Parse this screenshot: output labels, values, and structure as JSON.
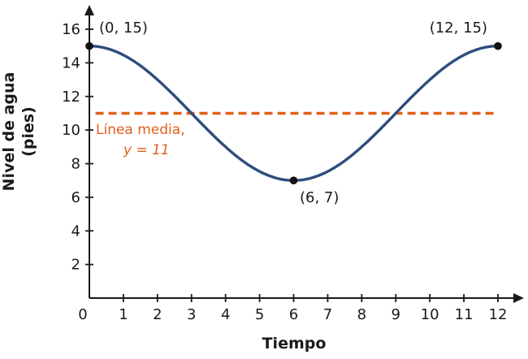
{
  "figure": {
    "xlabel": "Tiempo",
    "ylabel_line1": "Nivel de agua",
    "ylabel_line2": "(pies)"
  },
  "chart_data": {
    "type": "line",
    "title": "",
    "xlabel": "Tiempo",
    "ylabel": "Nivel de agua (pies)",
    "xlim": [
      0,
      12
    ],
    "ylim": [
      0,
      16
    ],
    "grid": false,
    "origin_label": "0",
    "x_ticks": [
      1,
      2,
      3,
      4,
      5,
      6,
      7,
      8,
      9,
      10,
      11,
      12
    ],
    "y_ticks": [
      2,
      4,
      6,
      8,
      10,
      12,
      14,
      16
    ],
    "series": [
      {
        "name": "nivel-de-agua",
        "model": "y = 11 + 4*cos(pi*x/6)",
        "color": "#2e4d7b",
        "x": [
          0,
          1,
          2,
          3,
          4,
          5,
          6,
          7,
          8,
          9,
          10,
          11,
          12
        ],
        "values": [
          15,
          14.46,
          13,
          11,
          9,
          7.54,
          7,
          7.54,
          9,
          11,
          13,
          14.46,
          15
        ]
      }
    ],
    "curve_params": {
      "midline": 11,
      "amplitude": 4,
      "period": 12
    },
    "curve_color": "#2e4d7b",
    "point_color": "#111111",
    "axis_color": "#1a1a1a",
    "midline": {
      "y": 11,
      "color": "#e2601b",
      "style": "dashed",
      "label_line1": "Línea media,",
      "label_line2": "y = 11"
    },
    "annotated_points": [
      {
        "x": 0,
        "y": 15,
        "label": "(0, 15)"
      },
      {
        "x": 6,
        "y": 7,
        "label": "(6, 7)"
      },
      {
        "x": 12,
        "y": 15,
        "label": "(12, 15)"
      }
    ]
  }
}
